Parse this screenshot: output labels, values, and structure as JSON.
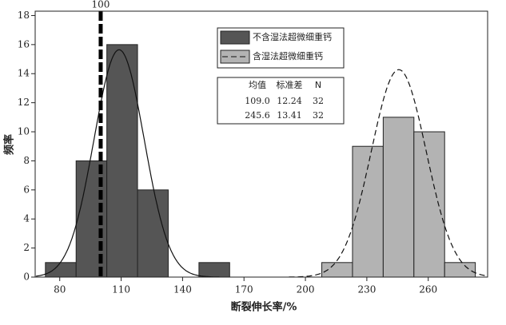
{
  "chart_data": {
    "type": "histogram",
    "xlabel": "断裂伸长率/%",
    "ylabel": "频率",
    "xlim": [
      68,
      289
    ],
    "ylim": [
      0,
      18.3
    ],
    "xticks": [
      80,
      110,
      140,
      170,
      200,
      230,
      260
    ],
    "yticks": [
      0,
      2,
      4,
      6,
      8,
      10,
      12,
      14,
      16,
      18
    ],
    "series": [
      {
        "name": "不含湿法超微细重钙",
        "color": "#555555",
        "line_style": "solid",
        "bins": [
          73,
          88,
          103,
          118,
          133,
          148,
          163
        ],
        "values": [
          1,
          8,
          16,
          6,
          0,
          1
        ]
      },
      {
        "name": "含湿法超微细重钙",
        "color": "#b3b3b3",
        "line_style": "dashed",
        "bins": [
          208,
          223,
          238,
          253,
          268,
          283
        ],
        "values": [
          1,
          9,
          11,
          10,
          1
        ]
      }
    ],
    "reference_line": {
      "x": 100
    },
    "stats": {
      "columns": [
        "均值",
        "标准差",
        "N"
      ],
      "rows": [
        [
          "109.0",
          "12.24",
          "32"
        ],
        [
          "245.6",
          "13.41",
          "32"
        ]
      ]
    }
  }
}
